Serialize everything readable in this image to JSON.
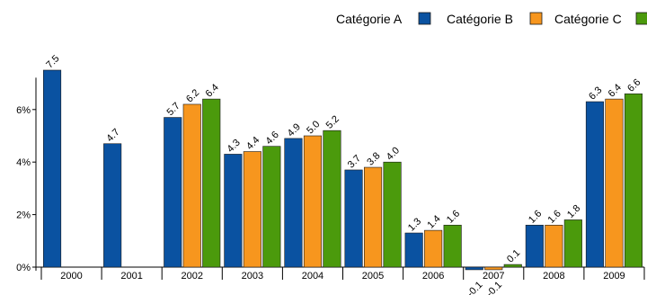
{
  "chart_data": {
    "type": "bar",
    "categories": [
      "2000",
      "2001",
      "2002",
      "2003",
      "2004",
      "2005",
      "2006",
      "2007",
      "2008",
      "2009"
    ],
    "series": [
      {
        "name": "Catégorie A",
        "color": "#0a52a1",
        "values": [
          7.5,
          4.7,
          5.7,
          4.3,
          4.9,
          3.7,
          1.3,
          -0.1,
          1.6,
          6.3
        ],
        "labels": [
          "7.5",
          "4.7",
          "5.7",
          "4.3",
          "4.9",
          "3.7",
          "1.3",
          "-0.1",
          "1.6",
          "6.3"
        ]
      },
      {
        "name": "Catégorie B",
        "color": "#f7961e",
        "values": [
          null,
          null,
          6.2,
          4.4,
          5.0,
          3.8,
          1.4,
          -0.1,
          1.6,
          6.4
        ],
        "labels": [
          "",
          "",
          "6.2",
          "4.4",
          "5.0",
          "3.8",
          "1.4",
          "-0.1",
          "1.6",
          "6.4"
        ]
      },
      {
        "name": "Catégorie C",
        "color": "#4b9a0c",
        "values": [
          null,
          null,
          6.4,
          4.6,
          5.2,
          4.0,
          1.6,
          0.1,
          1.8,
          6.6
        ],
        "labels": [
          "",
          "",
          "6.4",
          "4.6",
          "5.2",
          "4.0",
          "1.6",
          "0.1",
          "1.8",
          "6.6"
        ]
      }
    ],
    "y_ticks": [
      "0%",
      "2%",
      "4%",
      "6%"
    ],
    "y_tick_values": [
      0,
      2,
      4,
      6
    ],
    "ylim": [
      0,
      7.9
    ],
    "title": "",
    "xlabel": "",
    "ylabel": "",
    "grid": false,
    "legend": "top-right"
  }
}
